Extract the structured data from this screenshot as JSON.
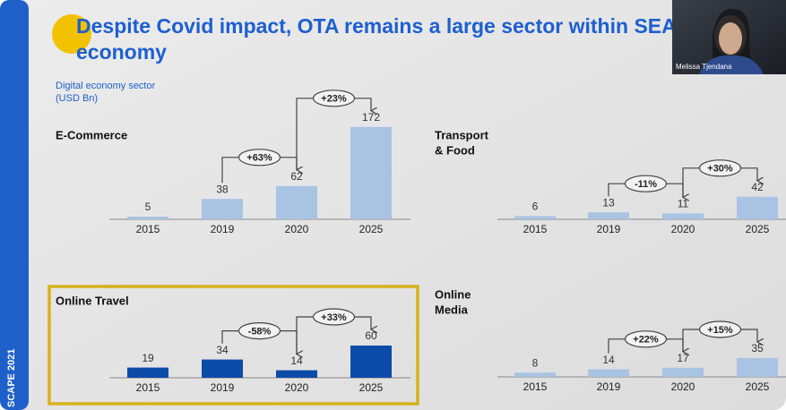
{
  "slide": {
    "title_lines": [
      "Despite Covid impact, OTA remains a large sector within SEA",
      "economy"
    ],
    "subtitle_lines": [
      "Digital economy sector",
      "(USD Bn)"
    ]
  },
  "sidebar": {
    "text": "SCAPE 2021"
  },
  "webcam": {
    "name": "Melissa Tjendana"
  },
  "chart_data": [
    {
      "type": "bar",
      "title_lines": [
        "E-Commerce"
      ],
      "categories": [
        "2015",
        "2019",
        "2020",
        "2025"
      ],
      "values": [
        5,
        38,
        62,
        172
      ],
      "color": "#a9c3e3",
      "annotations": [
        "+63%",
        "+23%"
      ],
      "highlight": false
    },
    {
      "type": "bar",
      "title_lines": [
        "Transport",
        "& Food"
      ],
      "categories": [
        "2015",
        "2019",
        "2020",
        "2025"
      ],
      "values": [
        6,
        13,
        11,
        42
      ],
      "color": "#a9c3e3",
      "annotations": [
        "-11%",
        "+30%"
      ],
      "highlight": false
    },
    {
      "type": "bar",
      "title_lines": [
        "Online Travel"
      ],
      "categories": [
        "2015",
        "2019",
        "2020",
        "2025"
      ],
      "values": [
        19,
        34,
        14,
        60
      ],
      "color": "#0d4ba8",
      "annotations": [
        "-58%",
        "+33%"
      ],
      "highlight": true
    },
    {
      "type": "bar",
      "title_lines": [
        "Online",
        "Media"
      ],
      "categories": [
        "2015",
        "2019",
        "2020",
        "2025"
      ],
      "values": [
        8,
        14,
        17,
        35
      ],
      "color": "#a9c3e3",
      "annotations": [
        "+22%",
        "+15%"
      ],
      "highlight": false
    }
  ]
}
